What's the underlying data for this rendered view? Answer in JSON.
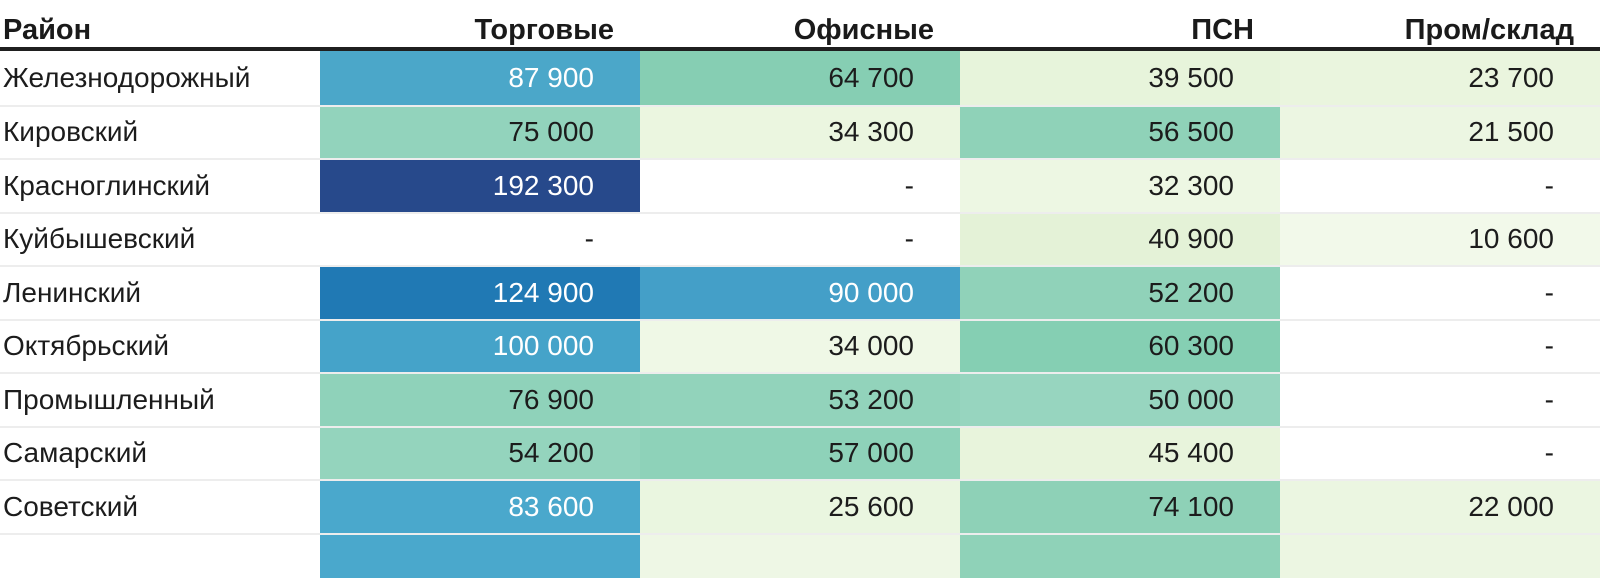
{
  "table": {
    "columns": [
      {
        "key": "district",
        "label": "Район"
      },
      {
        "key": "trade",
        "label": "Торговые"
      },
      {
        "key": "office",
        "label": "Офисные"
      },
      {
        "key": "psn",
        "label": "ПСН"
      },
      {
        "key": "industrial",
        "label": "Пром/склад"
      }
    ],
    "rows": [
      {
        "district": "Железнодорожный",
        "cells": [
          {
            "value": "87 900",
            "bg": "#4ba7c9",
            "text": "light"
          },
          {
            "value": "64 700",
            "bg": "#86ceb3",
            "text": "dark"
          },
          {
            "value": "39 500",
            "bg": "#e7f4db",
            "text": "dark"
          },
          {
            "value": "23 700",
            "bg": "#eaf5de",
            "text": "dark"
          }
        ]
      },
      {
        "district": "Кировский",
        "cells": [
          {
            "value": "75 000",
            "bg": "#92d3bc",
            "text": "dark"
          },
          {
            "value": "34 300",
            "bg": "#ebf6e0",
            "text": "dark"
          },
          {
            "value": "56 500",
            "bg": "#8fd2b8",
            "text": "dark"
          },
          {
            "value": "21 500",
            "bg": "#ecf6e2",
            "text": "dark"
          }
        ]
      },
      {
        "district": "Красноглинский",
        "cells": [
          {
            "value": "192 300",
            "bg": "#27498b",
            "text": "light"
          },
          {
            "value": "-",
            "bg": "#ffffff",
            "text": "dark"
          },
          {
            "value": "32 300",
            "bg": "#edf7e3",
            "text": "dark"
          },
          {
            "value": "-",
            "bg": "#ffffff",
            "text": "dark"
          }
        ]
      },
      {
        "district": "Куйбышевский",
        "cells": [
          {
            "value": "-",
            "bg": "#ffffff",
            "text": "dark"
          },
          {
            "value": "-",
            "bg": "#ffffff",
            "text": "dark"
          },
          {
            "value": "40 900",
            "bg": "#e4f2d7",
            "text": "dark"
          },
          {
            "value": "10 600",
            "bg": "#f2f9ea",
            "text": "dark"
          }
        ]
      },
      {
        "district": "Ленинский",
        "cells": [
          {
            "value": "124 900",
            "bg": "#2079b4",
            "text": "light"
          },
          {
            "value": "90 000",
            "bg": "#449fc8",
            "text": "light"
          },
          {
            "value": "52 200",
            "bg": "#90d2b9",
            "text": "dark"
          },
          {
            "value": "-",
            "bg": "#ffffff",
            "text": "dark"
          }
        ]
      },
      {
        "district": "Октябрьский",
        "cells": [
          {
            "value": "100 000",
            "bg": "#45a3c9",
            "text": "light"
          },
          {
            "value": "34 000",
            "bg": "#eff8e6",
            "text": "dark"
          },
          {
            "value": "60 300",
            "bg": "#85cfb3",
            "text": "dark"
          },
          {
            "value": "-",
            "bg": "#ffffff",
            "text": "dark"
          }
        ]
      },
      {
        "district": "Промышленный",
        "cells": [
          {
            "value": "76 900",
            "bg": "#8fd2ba",
            "text": "dark"
          },
          {
            "value": "53 200",
            "bg": "#92d3bb",
            "text": "dark"
          },
          {
            "value": "50 000",
            "bg": "#97d5bf",
            "text": "dark"
          },
          {
            "value": "-",
            "bg": "#ffffff",
            "text": "dark"
          }
        ]
      },
      {
        "district": "Самарский",
        "cells": [
          {
            "value": "54 200",
            "bg": "#94d4bd",
            "text": "dark"
          },
          {
            "value": "57 000",
            "bg": "#8ed2b9",
            "text": "dark"
          },
          {
            "value": "45 400",
            "bg": "#e8f4dc",
            "text": "dark"
          },
          {
            "value": "-",
            "bg": "#ffffff",
            "text": "dark"
          }
        ]
      },
      {
        "district": "Советский",
        "cells": [
          {
            "value": "83 600",
            "bg": "#4aa8cc",
            "text": "light"
          },
          {
            "value": "25 600",
            "bg": "#eaf6e0",
            "text": "dark"
          },
          {
            "value": "74 100",
            "bg": "#8ed1b7",
            "text": "dark"
          },
          {
            "value": "22 000",
            "bg": "#ebf6e1",
            "text": "dark"
          }
        ]
      }
    ],
    "partial_row_colors": [
      "#ffffff",
      "#4aa8cc",
      "#eef7e5",
      "#8fd2b8",
      "#ecf6e2"
    ],
    "colors": {
      "header_text": "#1a1a1a",
      "header_rule": "#1f1f1f",
      "cell_text_dark": "#1c1c1c",
      "cell_text_light": "#ffffff",
      "row_separator": "#ededed",
      "empty_cell_bg": "#ffffff"
    }
  },
  "chart_data": {
    "type": "heatmap",
    "title": "",
    "row_label_header": "Район",
    "columns": [
      "Торговые",
      "Офисные",
      "ПСН",
      "Пром/склад"
    ],
    "rows": [
      "Железнодорожный",
      "Кировский",
      "Красноглинский",
      "Куйбышевский",
      "Ленинский",
      "Октябрьский",
      "Промышленный",
      "Самарский",
      "Советский"
    ],
    "values": [
      [
        87900,
        64700,
        39500,
        23700
      ],
      [
        75000,
        34300,
        56500,
        21500
      ],
      [
        192300,
        null,
        32300,
        null
      ],
      [
        null,
        null,
        40900,
        10600
      ],
      [
        124900,
        90000,
        52200,
        null
      ],
      [
        100000,
        34000,
        60300,
        null
      ],
      [
        76900,
        53200,
        50000,
        null
      ],
      [
        54200,
        57000,
        45400,
        null
      ],
      [
        83600,
        25600,
        74100,
        22000
      ]
    ],
    "value_range": [
      10600,
      192300
    ],
    "color_scale": {
      "low": "#f2f9ea",
      "mid": "#8fd2b8",
      "high": "#27498b"
    },
    "missing_value_display": "-"
  }
}
